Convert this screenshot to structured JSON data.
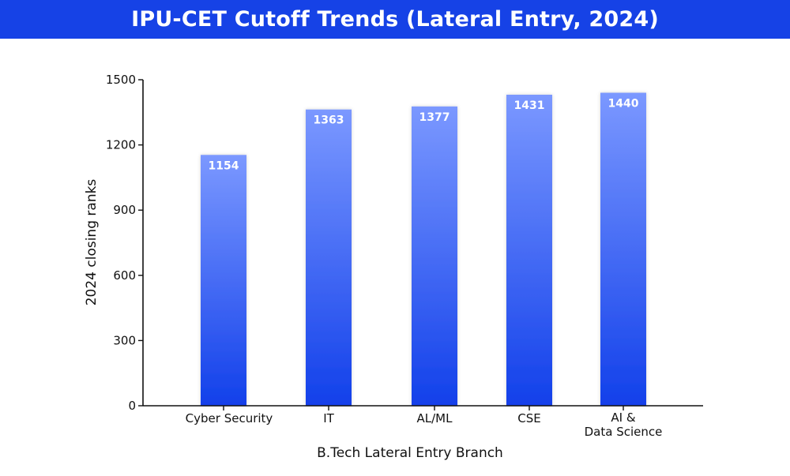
{
  "header": {
    "title": "IPU-CET Cutoff Trends (Lateral Entry, 2024)"
  },
  "colors": {
    "header_bg": "#1642e6",
    "bar_top": "#7b98ff",
    "bar_bottom": "#1240ea",
    "axis": "#111111"
  },
  "chart_data": {
    "type": "bar",
    "title": "IPU-CET Cutoff Trends (Lateral Entry, 2024)",
    "xlabel": "B.Tech Lateral Entry Branch",
    "ylabel": "2024 closing ranks",
    "categories": [
      [
        "Cyber Security"
      ],
      [
        "IT"
      ],
      [
        "AL/ML"
      ],
      [
        "CSE"
      ],
      [
        "AI &",
        "Data Science"
      ]
    ],
    "values": [
      1154,
      1363,
      1377,
      1431,
      1440
    ],
    "ylim": [
      0,
      1500
    ],
    "yticks": [
      0,
      300,
      600,
      900,
      1200,
      1500
    ],
    "grid": false,
    "legend": "none"
  }
}
